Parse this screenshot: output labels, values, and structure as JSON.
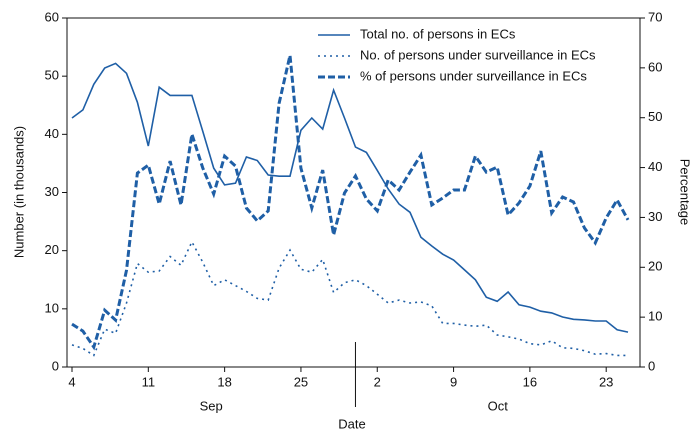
{
  "chart_data": {
    "type": "line",
    "x_label": "Date",
    "y_label": "Number (in thousands)",
    "y2_label": "Percentage",
    "categories": [
      "4",
      null,
      null,
      null,
      null,
      null,
      null,
      "11",
      null,
      null,
      null,
      null,
      null,
      null,
      "18",
      null,
      null,
      null,
      null,
      null,
      null,
      "25",
      null,
      null,
      null,
      null,
      null,
      null,
      "2",
      null,
      null,
      null,
      null,
      null,
      null,
      "9",
      null,
      null,
      null,
      null,
      null,
      null,
      "16",
      null,
      null,
      null,
      null,
      null,
      null,
      "23",
      null,
      null
    ],
    "month_labels": [
      "Sep",
      "Oct"
    ],
    "ylim": [
      0,
      60
    ],
    "yticks": [
      0,
      10,
      20,
      30,
      40,
      50,
      60
    ],
    "y2lim": [
      0,
      70
    ],
    "y2ticks": [
      0,
      10,
      20,
      30,
      40,
      50,
      60,
      70
    ],
    "legend": "top-right",
    "series": [
      {
        "name": "Total no. of persons in ECs",
        "color": "#1f5fa6",
        "style": "solid",
        "values": [
          42.8,
          44.2,
          48.6,
          51.4,
          52.2,
          50.5,
          45.5,
          38,
          48.1,
          46.7,
          46.7,
          46.7,
          40.5,
          34.2,
          31.3,
          31.6,
          36.1,
          35.5,
          33,
          32.8,
          32.8,
          40.7,
          42.8,
          40.9,
          47.6,
          42.8,
          37.8,
          36.9,
          33.8,
          30.6,
          28,
          26.6,
          22.3,
          20.8,
          19.4,
          18.4,
          16.7,
          15,
          12,
          11.3,
          12.9,
          10.7,
          10.3,
          9.6,
          9.3,
          8.6,
          8.2,
          8.1,
          7.9,
          7.9,
          6.4,
          6
        ]
      },
      {
        "name": "No. of persons under surveillance in ECs",
        "color": "#1f5fa6",
        "style": "dotted",
        "values": [
          3.8,
          3.2,
          2,
          6.5,
          5.8,
          11,
          17.8,
          16.3,
          16.5,
          19,
          17.5,
          21.5,
          18,
          14,
          15,
          14,
          13,
          11.8,
          11.5,
          17,
          20.1,
          16.8,
          16.3,
          18.5,
          12.8,
          14.5,
          15,
          14,
          12.5,
          11,
          11.5,
          11,
          11.2,
          10.5,
          7.5,
          7.5,
          7.2,
          7,
          7.2,
          5.5,
          5.2,
          4.8,
          4,
          3.8,
          4.5,
          3.3,
          3.2,
          2.8,
          2.2,
          2.3,
          2,
          2
        ]
      },
      {
        "name": "% of persons under surveillance in ECs",
        "color": "#1f5fa6",
        "style": "dashed",
        "axis": "y2",
        "values": [
          8.6,
          7.2,
          4,
          11.4,
          9.4,
          19.4,
          38.9,
          40.5,
          32.7,
          41.3,
          32.5,
          46.7,
          39.9,
          34.7,
          42.3,
          40.3,
          31.9,
          29.3,
          31.3,
          52.9,
          62.5,
          39.9,
          31.9,
          39.5,
          26.5,
          34.9,
          38.3,
          33.7,
          31.3,
          37.5,
          35.5,
          39.1,
          42.5,
          32.5,
          33.9,
          35.5,
          35.5,
          42.3,
          39.1,
          40.1,
          30.5,
          32.9,
          36.3,
          43.3,
          30.9,
          34.1,
          33.1,
          27.9,
          24.9,
          29.9,
          33.5,
          29.5
        ]
      }
    ]
  }
}
